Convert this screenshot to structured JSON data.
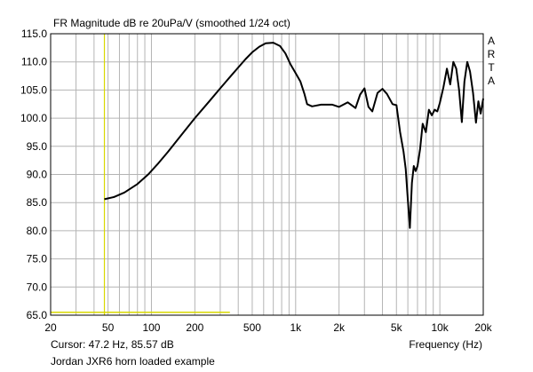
{
  "chart_data": {
    "type": "line",
    "title": "FR Magnitude dB re 20uPa/V (smoothed 1/24 oct)",
    "xlabel": "Frequency (Hz)",
    "ylabel": "",
    "x_scale": "log",
    "xlim": [
      20,
      20000
    ],
    "ylim": [
      65,
      115
    ],
    "grid": true,
    "x_ticks": [
      {
        "v": 20,
        "label": "20"
      },
      {
        "v": 50,
        "label": "50"
      },
      {
        "v": 100,
        "label": "100"
      },
      {
        "v": 200,
        "label": "200"
      },
      {
        "v": 500,
        "label": "500"
      },
      {
        "v": 1000,
        "label": "1k"
      },
      {
        "v": 2000,
        "label": "2k"
      },
      {
        "v": 5000,
        "label": "5k"
      },
      {
        "v": 10000,
        "label": "10k"
      },
      {
        "v": 20000,
        "label": "20k"
      }
    ],
    "y_ticks": [
      {
        "v": 115,
        "label": "115.0"
      },
      {
        "v": 110,
        "label": "110.0"
      },
      {
        "v": 105,
        "label": "105.0"
      },
      {
        "v": 100,
        "label": "100.0"
      },
      {
        "v": 95,
        "label": "95.0"
      },
      {
        "v": 90,
        "label": "90.0"
      },
      {
        "v": 85,
        "label": "85.0"
      },
      {
        "v": 80,
        "label": "80.0"
      },
      {
        "v": 75,
        "label": "75.0"
      },
      {
        "v": 70,
        "label": "70.0"
      },
      {
        "v": 65,
        "label": "65.0"
      }
    ],
    "series": [
      {
        "color": "#000000",
        "x": [
          47.2,
          55,
          65,
          80,
          95,
          110,
          130,
          160,
          200,
          250,
          300,
          350,
          400,
          450,
          500,
          560,
          620,
          700,
          780,
          850,
          920,
          1000,
          1080,
          1150,
          1200,
          1300,
          1500,
          1800,
          2000,
          2300,
          2600,
          2800,
          3000,
          3200,
          3400,
          3700,
          4000,
          4300,
          4700,
          5000,
          5300,
          5600,
          5800,
          6000,
          6200,
          6400,
          6600,
          6800,
          7000,
          7300,
          7600,
          8000,
          8400,
          8800,
          9200,
          9600,
          10000,
          10600,
          11200,
          11800,
          12400,
          13000,
          13600,
          14200,
          14800,
          15500,
          16200,
          17000,
          17800,
          18500,
          19200,
          20000
        ],
        "y": [
          85.6,
          86.0,
          86.8,
          88.3,
          90.0,
          91.8,
          94.0,
          96.9,
          100.0,
          102.9,
          105.3,
          107.3,
          109.0,
          110.5,
          111.7,
          112.7,
          113.3,
          113.4,
          112.8,
          111.5,
          109.6,
          108.0,
          106.5,
          104.3,
          102.5,
          102.1,
          102.4,
          102.4,
          102.0,
          102.8,
          101.8,
          104.2,
          105.3,
          102.0,
          101.2,
          104.5,
          105.2,
          104.3,
          102.5,
          102.3,
          97.5,
          94.0,
          91.0,
          85.5,
          80.5,
          88.5,
          91.5,
          90.6,
          91.5,
          94.5,
          99.0,
          97.5,
          101.5,
          100.5,
          101.5,
          101.2,
          102.7,
          105.5,
          108.8,
          106.0,
          110.0,
          108.8,
          105.0,
          99.3,
          106.5,
          110.0,
          108.3,
          104.5,
          99.2,
          103.0,
          100.8,
          103.5
        ]
      },
      {
        "color": "#d8d800",
        "x": [
          20,
          350
        ],
        "y": [
          65.5,
          65.5
        ]
      }
    ],
    "cursor": {
      "x": 47.2,
      "y": 85.57,
      "color": "#d8d800"
    },
    "right_label": [
      "A",
      "R",
      "T",
      "A"
    ],
    "footer": {
      "cursor_text": "Cursor: 47.2 Hz, 85.57 dB",
      "caption": "Jordan JXR6 horn loaded example"
    }
  }
}
